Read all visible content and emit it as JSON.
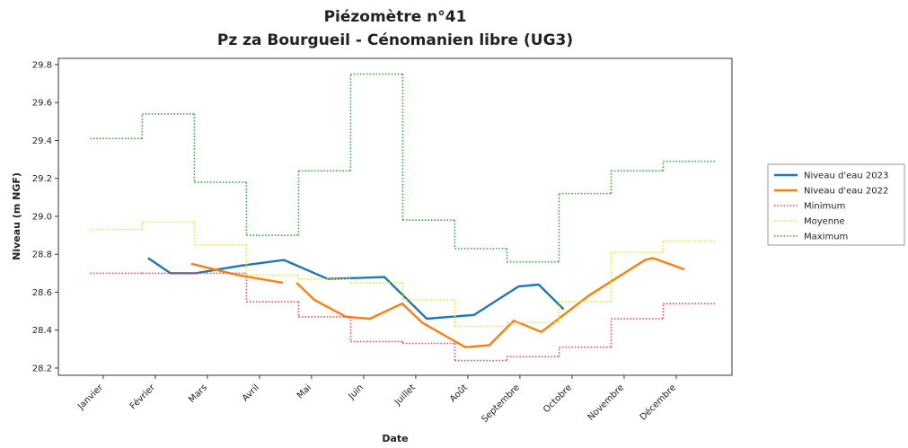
{
  "chart_data": {
    "type": "line",
    "title": "Piézomètre n°41",
    "subtitle": "Pz za Bourgueil - Cénomanien libre (UG3)",
    "x_label": "Date",
    "y_label": "Niveau (m NGF)",
    "xlim": [
      -0.86,
      12.07
    ],
    "xticks": [
      {
        "value": 0,
        "label": "Janvier"
      },
      {
        "value": 1,
        "label": "Février"
      },
      {
        "value": 2,
        "label": "Mars"
      },
      {
        "value": 3,
        "label": "Avril"
      },
      {
        "value": 4,
        "label": "Mai"
      },
      {
        "value": 5,
        "label": "Juin"
      },
      {
        "value": 6,
        "label": "Juillet"
      },
      {
        "value": 7,
        "label": "Août"
      },
      {
        "value": 8,
        "label": "Septembre"
      },
      {
        "value": 9,
        "label": "Octobre"
      },
      {
        "value": 10,
        "label": "Novembre"
      },
      {
        "value": 11,
        "label": "Décembre"
      }
    ],
    "ylim": [
      28.162,
      29.833
    ],
    "yticks": [
      28.2,
      28.4,
      28.6,
      28.8,
      {
        "value": 29,
        "label": "29.0"
      },
      29.2,
      29.4,
      29.6,
      29.8
    ],
    "legend": "right",
    "series": [
      {
        "name": "Niveau d'eau 2023",
        "color": "#1f77b4",
        "style": "solid",
        "x": [
          0.86,
          1.29,
          1.78,
          2.64,
          3.47,
          4.31,
          5.4,
          6.21,
          7.12,
          7.97,
          8.36,
          8.84
        ],
        "values": [
          28.78,
          28.7,
          28.7,
          28.74,
          28.77,
          28.67,
          28.68,
          28.46,
          28.48,
          28.63,
          28.64,
          28.51
        ]
      },
      {
        "name": "Niveau d'eau 2022",
        "color": "#ff7f0e",
        "style": "solid",
        "x": [
          1.69,
          2.59,
          3.45,
          null,
          3.71,
          4.05,
          4.66,
          5.12,
          5.74,
          6.12,
          6.95,
          7.41,
          7.88,
          8.41,
          9.31,
          10.4,
          10.55,
          11.16
        ],
        "values": [
          28.75,
          28.69,
          28.65,
          null,
          28.65,
          28.56,
          28.47,
          28.46,
          28.54,
          28.44,
          28.31,
          28.32,
          28.45,
          28.39,
          28.58,
          28.77,
          28.78,
          28.72
        ]
      },
      {
        "name": "Minimum",
        "color": "#e05555",
        "style": "steps",
        "x": [
          0,
          1,
          2,
          3,
          4,
          5,
          6,
          7,
          8,
          9,
          10,
          11
        ],
        "values": [
          28.7,
          28.7,
          28.7,
          28.55,
          28.47,
          28.34,
          28.33,
          28.24,
          28.26,
          28.31,
          28.46,
          28.54
        ]
      },
      {
        "name": "Moyenne",
        "color": "#f2dd3c",
        "style": "steps",
        "x": [
          0,
          1,
          2,
          3,
          4,
          5,
          6,
          7,
          8,
          9,
          10,
          11
        ],
        "values": [
          28.93,
          28.97,
          28.85,
          28.69,
          28.67,
          28.65,
          28.56,
          28.42,
          28.44,
          28.55,
          28.81,
          28.87
        ]
      },
      {
        "name": "Maximum",
        "color": "#3aa83a",
        "style": "steps",
        "x": [
          0,
          1,
          2,
          3,
          4,
          5,
          6,
          7,
          8,
          9,
          10,
          11
        ],
        "values": [
          29.41,
          29.54,
          29.18,
          28.9,
          29.24,
          29.75,
          28.98,
          28.83,
          28.76,
          29.12,
          29.24,
          29.29
        ]
      }
    ]
  }
}
